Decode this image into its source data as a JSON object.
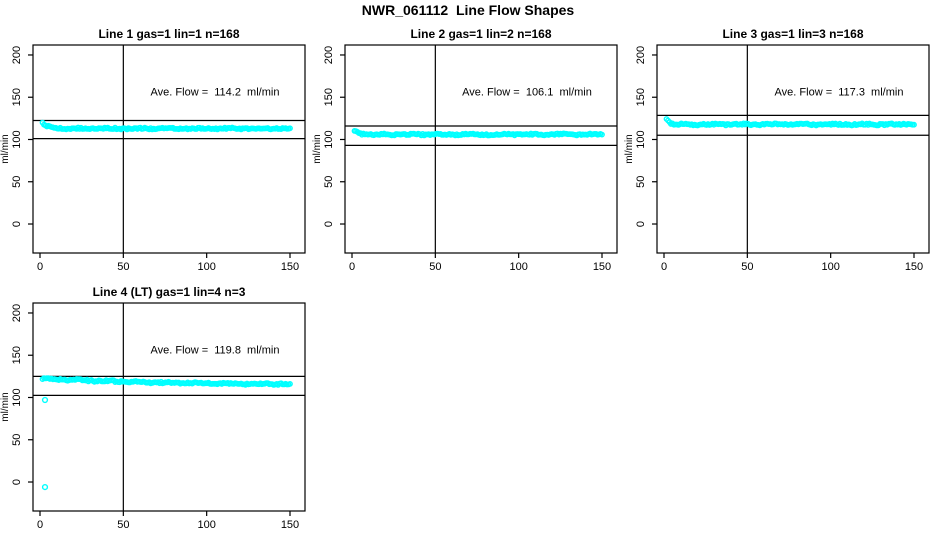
{
  "page_title": "NWR_061112  Line Flow Shapes",
  "colors": {
    "point": "#00ffff",
    "axis": "#000000",
    "background": "#ffffff",
    "text": "#000000"
  },
  "axes": {
    "x_ticks": [
      0,
      50,
      100,
      150
    ],
    "y_ticks": [
      0,
      50,
      100,
      150,
      200
    ],
    "y_label": "ml/min",
    "x_range": [
      -4.2,
      159.0
    ],
    "y_range": [
      -34.3,
      211.8
    ],
    "grid": false,
    "legend": "none"
  },
  "chart_data": [
    {
      "type": "scatter",
      "title": "Line 1 gas=1 lin=1 n=168",
      "annotation": "Ave. Flow =  114.2  ml/min",
      "ave_flow_ml_min": 114.2,
      "n": 168,
      "vline_x": 50,
      "hlines": [
        122.5,
        101.0
      ],
      "trace": {
        "x_start": 1.5,
        "x_end": 150,
        "count": 168,
        "y_start": 120.0,
        "y_settle": 113.0,
        "decay": 3.0,
        "jitter": 0.9
      },
      "outliers": []
    },
    {
      "type": "scatter",
      "title": "Line 2 gas=1 lin=2 n=168",
      "annotation": "Ave. Flow =  106.1  ml/min",
      "ave_flow_ml_min": 106.1,
      "n": 168,
      "vline_x": 50,
      "hlines": [
        116.0,
        93.0
      ],
      "trace": {
        "x_start": 1.5,
        "x_end": 150,
        "count": 168,
        "y_start": 110.0,
        "y_settle": 106.0,
        "decay": 2.5,
        "jitter": 0.9
      },
      "outliers": []
    },
    {
      "type": "scatter",
      "title": "Line 3 gas=1 lin=3 n=168",
      "annotation": "Ave. Flow =  117.3  ml/min",
      "ave_flow_ml_min": 117.3,
      "n": 168,
      "vline_x": 50,
      "hlines": [
        128.5,
        105.0
      ],
      "trace": {
        "x_start": 1.5,
        "x_end": 150,
        "count": 168,
        "y_start": 125.0,
        "y_settle": 117.8,
        "decay": 1.8,
        "jitter": 1.0
      },
      "outliers": []
    },
    {
      "type": "scatter",
      "title": "Line 4 (LT) gas=1 lin=4 n=3",
      "annotation": "Ave. Flow =  119.8  ml/min",
      "ave_flow_ml_min": 119.8,
      "n": 3,
      "vline_x": 50,
      "hlines": [
        125.0,
        102.5
      ],
      "trace": {
        "x_start": 1.5,
        "x_end": 150,
        "count": 168,
        "y_start": 122.5,
        "y_settle": 115.0,
        "decay": 70.0,
        "jitter": 1.0
      },
      "outliers": [
        [
          3,
          97
        ],
        [
          3,
          -6
        ]
      ]
    }
  ]
}
